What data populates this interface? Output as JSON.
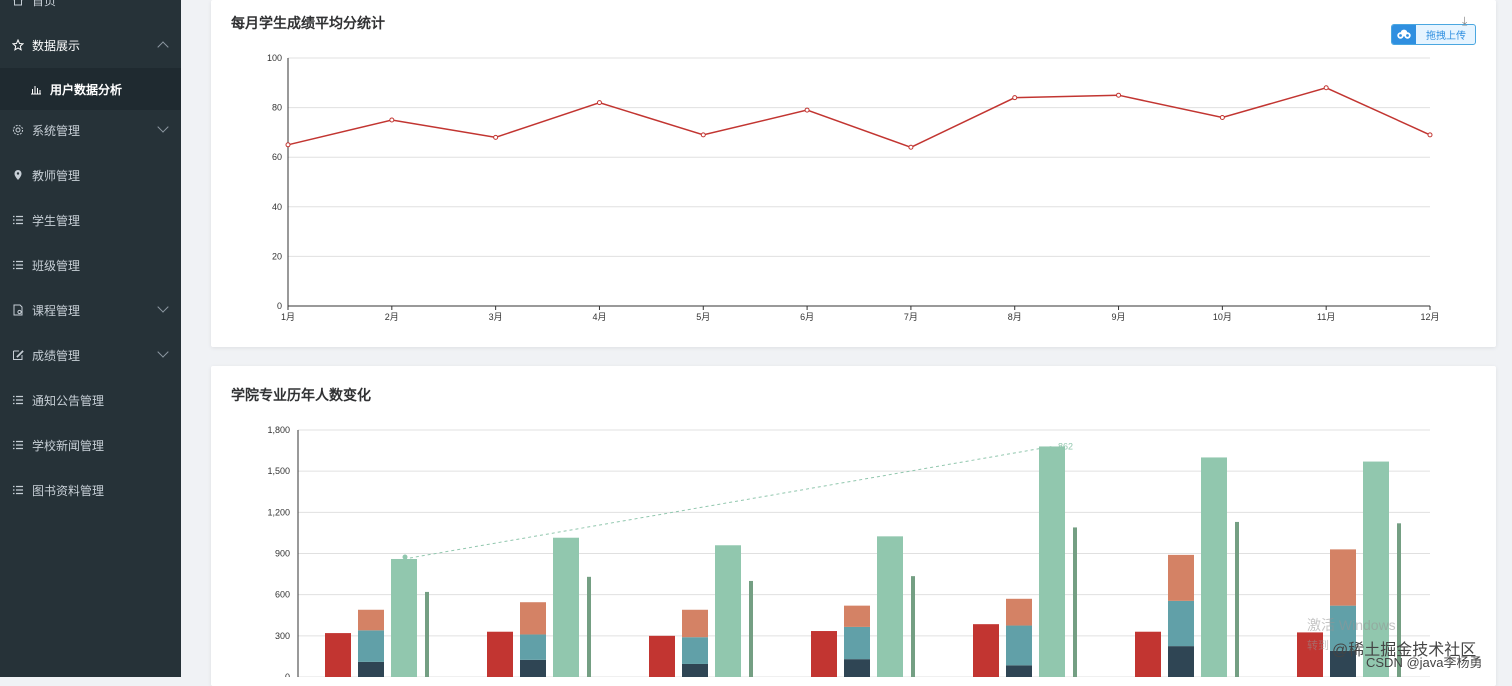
{
  "sidebar": {
    "items": [
      {
        "label": "首页",
        "icon": "home-icon"
      },
      {
        "label": "数据展示",
        "icon": "star-icon",
        "expanded": true
      },
      {
        "label": "系统管理",
        "icon": "gear-icon"
      },
      {
        "label": "教师管理",
        "icon": "location-icon"
      },
      {
        "label": "学生管理",
        "icon": "list-icon"
      },
      {
        "label": "班级管理",
        "icon": "list-icon"
      },
      {
        "label": "课程管理",
        "icon": "document-icon"
      },
      {
        "label": "成绩管理",
        "icon": "edit-icon"
      },
      {
        "label": "通知公告管理",
        "icon": "list-icon"
      },
      {
        "label": "学校新闻管理",
        "icon": "list-icon"
      },
      {
        "label": "图书资料管理",
        "icon": "list-icon"
      }
    ],
    "subitem": {
      "label": "用户数据分析",
      "icon": "bar-chart-icon"
    }
  },
  "upload": {
    "label": "拖拽上传"
  },
  "watermarks": {
    "activate": "激活 Windows",
    "activate_sub": "转到",
    "juejin": "@稀土掘金技术社区",
    "csdn": "CSDN @java李杨勇"
  },
  "colors": {
    "sidebar": "#263238",
    "line": "#c23531",
    "bar1": "#c23531",
    "bar2": "#2f4554",
    "bar3": "#61a0a8",
    "bar4": "#d48265",
    "bar5": "#91c7ae",
    "bar6": "#749f83"
  },
  "chart_data": [
    {
      "type": "line",
      "title": "每月学生成绩平均分统计",
      "categories": [
        "1月",
        "2月",
        "3月",
        "4月",
        "5月",
        "6月",
        "7月",
        "8月",
        "9月",
        "10月",
        "11月",
        "12月"
      ],
      "values": [
        65,
        75,
        68,
        82,
        69,
        79,
        64,
        84,
        85,
        76,
        88,
        69
      ],
      "ylim": [
        0,
        100
      ],
      "yticks": [
        "0",
        "20",
        "40",
        "60",
        "80",
        "100"
      ],
      "grid": true
    },
    {
      "type": "bar",
      "title": "学院专业历年人数变化",
      "ylim": [
        0,
        1800
      ],
      "yticks": [
        "0",
        "300",
        "600",
        "900",
        "1,200",
        "1,500",
        "1,800"
      ],
      "groups": [
        {
          "a": 320,
          "s_dark": 110,
          "s_teal": 230,
          "s_orange": 150,
          "green": 860,
          "thin": 620
        },
        {
          "a": 330,
          "s_dark": 125,
          "s_teal": 185,
          "s_orange": 235,
          "green": 1015,
          "thin": 730
        },
        {
          "a": 300,
          "s_dark": 95,
          "s_teal": 195,
          "s_orange": 200,
          "green": 960,
          "thin": 700
        },
        {
          "a": 335,
          "s_dark": 130,
          "s_teal": 235,
          "s_orange": 155,
          "green": 1025,
          "thin": 735
        },
        {
          "a": 385,
          "s_dark": 85,
          "s_teal": 290,
          "s_orange": 195,
          "green": 1680,
          "thin": 1090
        },
        {
          "a": 330,
          "s_dark": 225,
          "s_teal": 330,
          "s_orange": 335,
          "green": 1600,
          "thin": 1130
        },
        {
          "a": 325,
          "s_dark": 190,
          "s_teal": 330,
          "s_orange": 410,
          "green": 1570,
          "thin": 1120
        }
      ],
      "markline": {
        "label": "862",
        "from_group": 0,
        "to_group": 4
      }
    }
  ]
}
